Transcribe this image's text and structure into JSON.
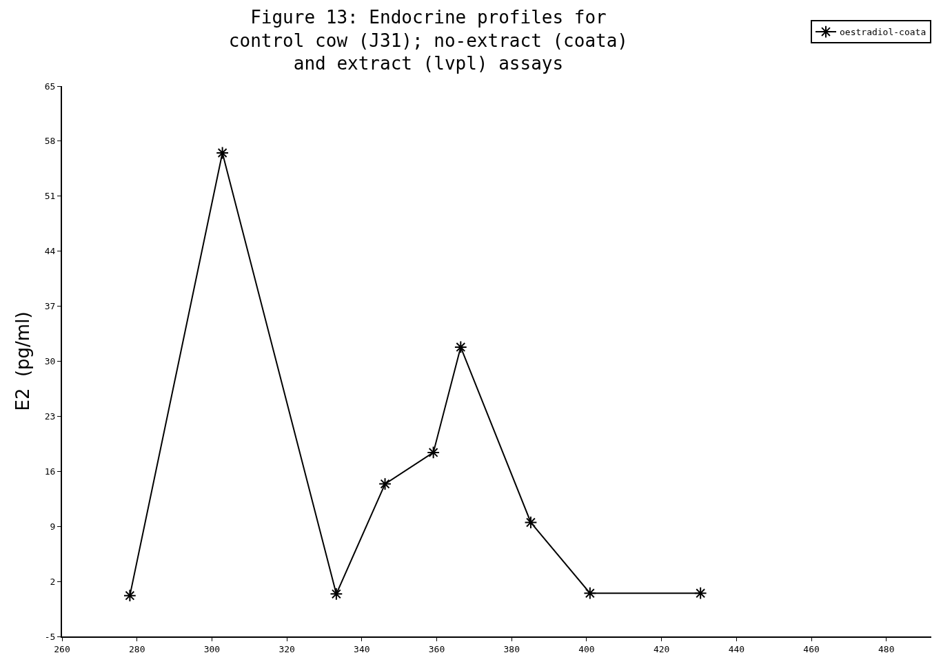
{
  "chart_data": {
    "type": "line",
    "title": "Figure 13: Endocrine profiles for\ncontrol cow (J31); no-extract (coata)\nand extract (lvpl) assays",
    "ylabel": "E2  (pg/ml)",
    "x": [
      278.1,
      302.8,
      333.2,
      346.2,
      359.1,
      366.4,
      385.1,
      400.9,
      430.4
    ],
    "series": [
      {
        "name": "oestradiol-coata",
        "color": "#000000",
        "values": [
          0.2,
          56.5,
          0.4,
          14.4,
          18.4,
          31.8,
          9.5,
          0.5,
          0.5
        ]
      }
    ],
    "xlim": [
      260,
      492
    ],
    "xticks": [
      260,
      280,
      300,
      320,
      340,
      360,
      380,
      400,
      420,
      440,
      460,
      480
    ],
    "ylim": [
      -5,
      65
    ],
    "yticks": [
      -5,
      2,
      9,
      16,
      23,
      30,
      37,
      44,
      51,
      58,
      65
    ],
    "legend": "top right",
    "marker": "cross",
    "line_style": "solid"
  }
}
